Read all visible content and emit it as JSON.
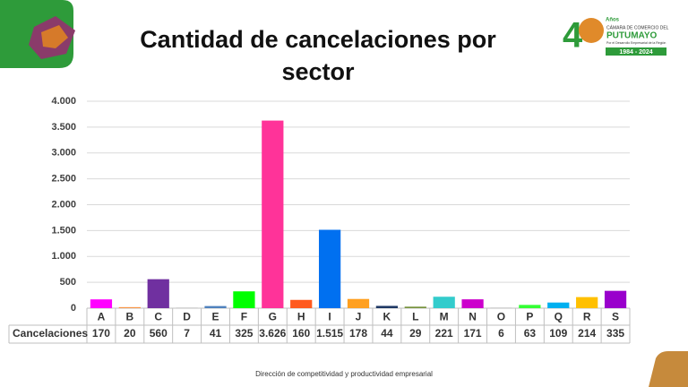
{
  "chart_data": {
    "type": "bar",
    "title": "Cantidad de cancelaciones por sector",
    "categories": [
      "A",
      "B",
      "C",
      "D",
      "E",
      "F",
      "G",
      "H",
      "I",
      "J",
      "K",
      "L",
      "M",
      "N",
      "O",
      "P",
      "Q",
      "R",
      "S"
    ],
    "series_label": "Cancelaciones",
    "values": [
      170,
      20,
      560,
      7,
      41,
      325,
      3626,
      160,
      1515,
      178,
      44,
      29,
      221,
      171,
      6,
      63,
      109,
      214,
      335
    ],
    "value_labels": [
      "170",
      "20",
      "560",
      "7",
      "41",
      "325",
      "3.626",
      "160",
      "1.515",
      "178",
      "44",
      "29",
      "221",
      "171",
      "6",
      "63",
      "109",
      "214",
      "335"
    ],
    "colors": [
      "#ff00ff",
      "#f79646",
      "#7030a0",
      "#a6a6a6",
      "#4f81bd",
      "#00ff00",
      "#ff3399",
      "#ff5a1f",
      "#0070f0",
      "#ffa020",
      "#1f3864",
      "#76923c",
      "#33cccc",
      "#cc00cc",
      "#a6a6a6",
      "#33ff33",
      "#00b0f0",
      "#ffc000",
      "#9900cc"
    ],
    "ylim": [
      0,
      4000
    ],
    "yticks": [
      0,
      500,
      {
        "value": 1000,
        "label": "1.000"
      },
      {
        "value": 1500,
        "label": "1.500"
      },
      {
        "value": 2000,
        "label": "2.000"
      },
      {
        "value": 2500,
        "label": "2.500"
      },
      {
        "value": 3000,
        "label": "3.000"
      },
      {
        "value": 3500,
        "label": "3.500"
      },
      {
        "value": 4000,
        "label": "4.000"
      }
    ],
    "grid": true
  },
  "footer": "Dirección de competitividad y productividad empresarial",
  "logo": {
    "number": "4",
    "years": "Años",
    "org_line": "CÁMARA DE COMERCIO DEL",
    "org_name": "PUTUMAYO",
    "tagline": "Por el Desarrollo Empresarial de la Región",
    "period": "1984 - 2024"
  }
}
